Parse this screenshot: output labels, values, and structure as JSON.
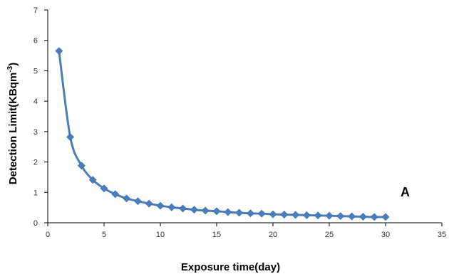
{
  "chart_data": {
    "type": "line",
    "xlabel": "Exposure time(day)",
    "ylabel_main": "Detection Limit(KBqm",
    "ylabel_superscript": "-3",
    "ylabel_suffix": ")",
    "annotation": "A",
    "xlim": [
      0,
      35
    ],
    "ylim": [
      0,
      7
    ],
    "x_ticks": [
      0,
      5,
      10,
      15,
      20,
      25,
      30,
      35
    ],
    "y_ticks": [
      0,
      1,
      2,
      3,
      4,
      5,
      6,
      7
    ],
    "grid": false,
    "legend": "none",
    "series": [
      {
        "color": "#4a7ebb",
        "marker": "diamond",
        "x": [
          1,
          2,
          3,
          4,
          5,
          6,
          7,
          8,
          9,
          10,
          11,
          12,
          13,
          14,
          15,
          16,
          17,
          18,
          19,
          20,
          21,
          22,
          23,
          24,
          25,
          26,
          27,
          28,
          29,
          30
        ],
        "y": [
          5.65,
          2.82,
          1.88,
          1.41,
          1.13,
          0.94,
          0.8,
          0.71,
          0.63,
          0.56,
          0.51,
          0.47,
          0.43,
          0.4,
          0.38,
          0.35,
          0.33,
          0.31,
          0.3,
          0.28,
          0.27,
          0.26,
          0.25,
          0.24,
          0.23,
          0.22,
          0.21,
          0.2,
          0.19,
          0.19
        ]
      }
    ]
  }
}
